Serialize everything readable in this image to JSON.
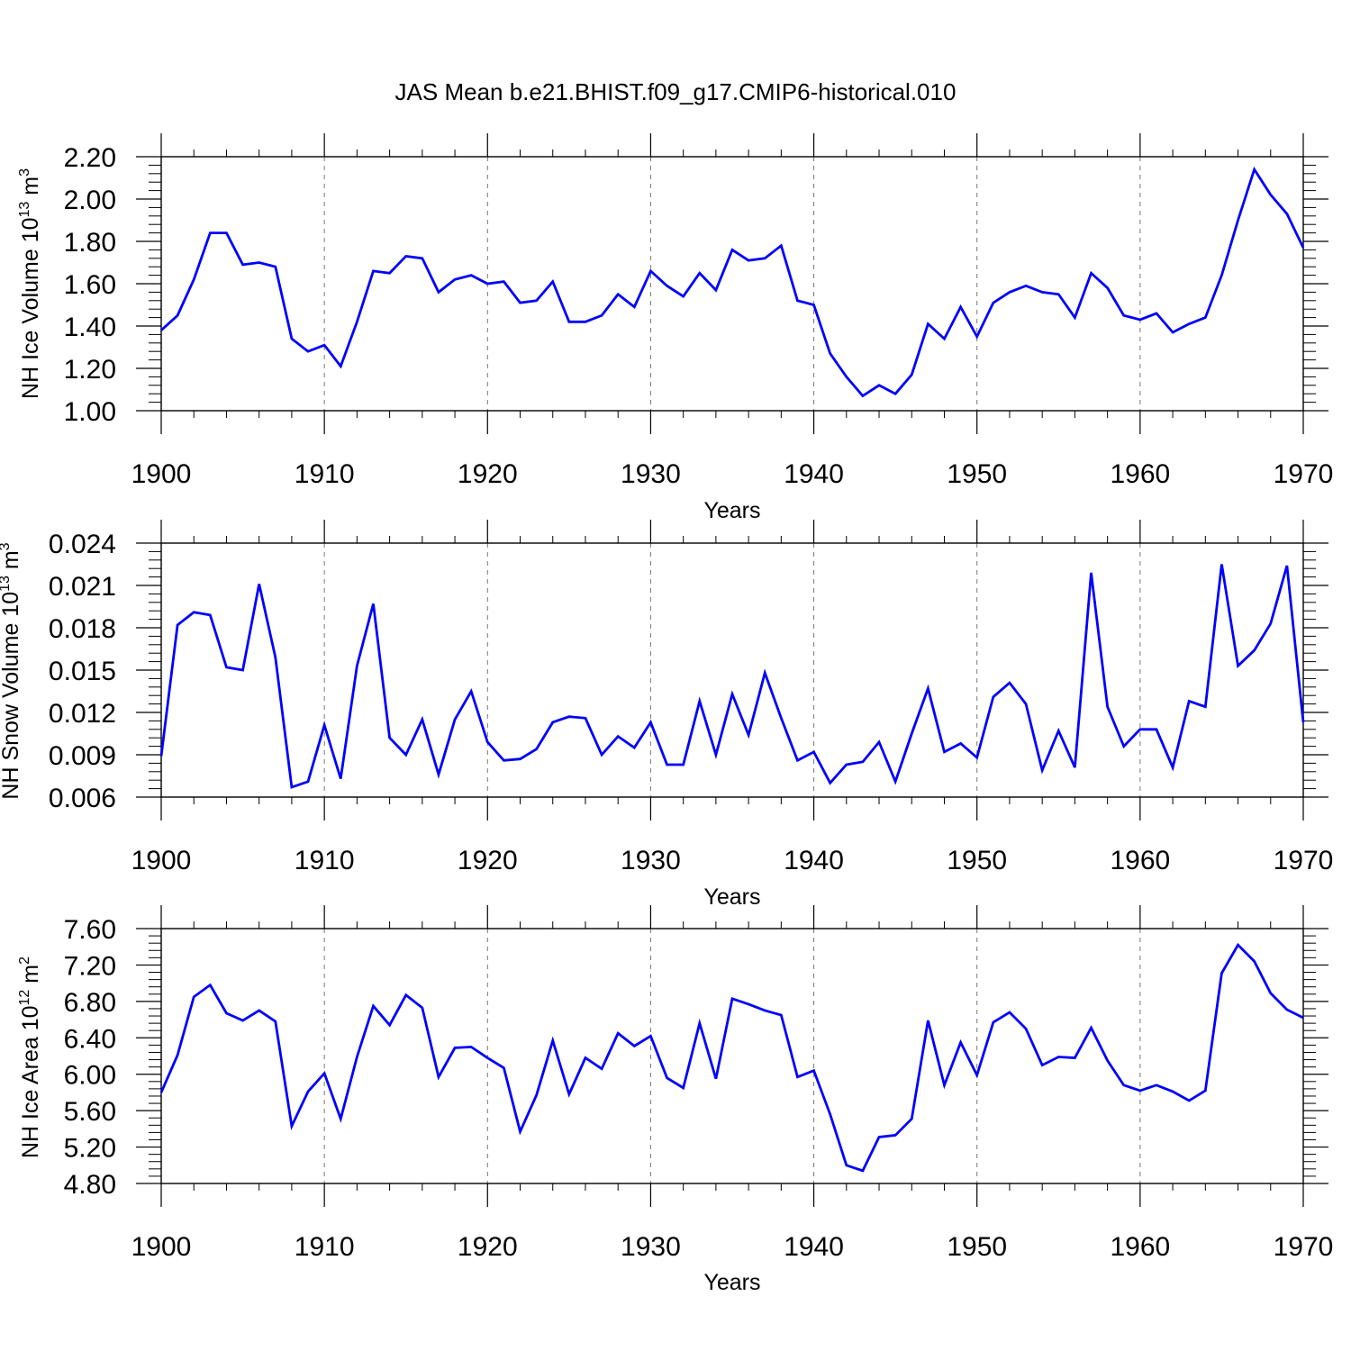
{
  "title": "JAS Mean b.e21.BHIST.f09_g17.CMIP6-historical.010",
  "colors": {
    "line": "#0000ff",
    "axis": "#000000",
    "grid": "#777777"
  },
  "chart_data": [
    {
      "type": "line",
      "xlabel": "Years",
      "ylabel": {
        "main": "NH Ice Volume 10",
        "sup1": "13",
        "mid": " m",
        "sup2": "3"
      },
      "xlim": [
        1900,
        1970
      ],
      "ylim": [
        1.0,
        2.2
      ],
      "yticks": [
        "1.00",
        "1.20",
        "1.40",
        "1.60",
        "1.80",
        "2.00",
        "2.20"
      ],
      "xticks": [
        "1900",
        "1910",
        "1920",
        "1930",
        "1940",
        "1950",
        "1960",
        "1970"
      ],
      "grid": "vertical dashed at decades",
      "x": [
        1900,
        1901,
        1902,
        1903,
        1904,
        1905,
        1906,
        1907,
        1908,
        1909,
        1910,
        1911,
        1912,
        1913,
        1914,
        1915,
        1916,
        1917,
        1918,
        1919,
        1920,
        1921,
        1922,
        1923,
        1924,
        1925,
        1926,
        1927,
        1928,
        1929,
        1930,
        1931,
        1932,
        1933,
        1934,
        1935,
        1936,
        1937,
        1938,
        1939,
        1940,
        1941,
        1942,
        1943,
        1944,
        1945,
        1946,
        1947,
        1948,
        1949,
        1950,
        1951,
        1952,
        1953,
        1954,
        1955,
        1956,
        1957,
        1958,
        1959,
        1960,
        1961,
        1962,
        1963,
        1964,
        1965,
        1966,
        1967,
        1968,
        1969,
        1970
      ],
      "values": [
        1.38,
        1.45,
        1.62,
        1.84,
        1.84,
        1.69,
        1.7,
        1.68,
        1.34,
        1.28,
        1.31,
        1.21,
        1.42,
        1.66,
        1.65,
        1.73,
        1.72,
        1.56,
        1.62,
        1.64,
        1.6,
        1.61,
        1.51,
        1.52,
        1.61,
        1.42,
        1.42,
        1.45,
        1.55,
        1.49,
        1.66,
        1.59,
        1.54,
        1.65,
        1.57,
        1.76,
        1.71,
        1.72,
        1.78,
        1.52,
        1.5,
        1.27,
        1.16,
        1.07,
        1.12,
        1.08,
        1.17,
        1.41,
        1.34,
        1.49,
        1.35,
        1.51,
        1.56,
        1.59,
        1.56,
        1.55,
        1.44,
        1.65,
        1.58,
        1.45,
        1.43,
        1.46,
        1.37,
        1.41,
        1.44,
        1.64,
        1.9,
        2.14,
        2.02,
        1.93,
        1.77
      ]
    },
    {
      "type": "line",
      "xlabel": "Years",
      "ylabel": {
        "main": "NH Snow Volume 10",
        "sup1": "13",
        "mid": " m",
        "sup2": "3"
      },
      "xlim": [
        1900,
        1970
      ],
      "ylim": [
        0.006,
        0.024
      ],
      "yticks": [
        "0.006",
        "0.009",
        "0.012",
        "0.015",
        "0.018",
        "0.021",
        "0.024"
      ],
      "xticks": [
        "1900",
        "1910",
        "1920",
        "1930",
        "1940",
        "1950",
        "1960",
        "1970"
      ],
      "grid": "vertical dashed at decades",
      "x": [
        1900,
        1901,
        1902,
        1903,
        1904,
        1905,
        1906,
        1907,
        1908,
        1909,
        1910,
        1911,
        1912,
        1913,
        1914,
        1915,
        1916,
        1917,
        1918,
        1919,
        1920,
        1921,
        1922,
        1923,
        1924,
        1925,
        1926,
        1927,
        1928,
        1929,
        1930,
        1931,
        1932,
        1933,
        1934,
        1935,
        1936,
        1937,
        1938,
        1939,
        1940,
        1941,
        1942,
        1943,
        1944,
        1945,
        1946,
        1947,
        1948,
        1949,
        1950,
        1951,
        1952,
        1953,
        1954,
        1955,
        1956,
        1957,
        1958,
        1959,
        1960,
        1961,
        1962,
        1963,
        1964,
        1965,
        1966,
        1967,
        1968,
        1969,
        1970
      ],
      "values": [
        0.0089,
        0.0182,
        0.0191,
        0.0189,
        0.0152,
        0.015,
        0.0211,
        0.0159,
        0.0067,
        0.0071,
        0.0111,
        0.0073,
        0.0153,
        0.0197,
        0.0102,
        0.009,
        0.0115,
        0.0076,
        0.0115,
        0.0135,
        0.0099,
        0.0086,
        0.0087,
        0.0094,
        0.0113,
        0.0117,
        0.0116,
        0.009,
        0.0103,
        0.0095,
        0.0113,
        0.0083,
        0.0083,
        0.0128,
        0.009,
        0.0133,
        0.0104,
        0.0148,
        0.0116,
        0.0086,
        0.0092,
        0.007,
        0.0083,
        0.0085,
        0.0099,
        0.0071,
        0.0105,
        0.0137,
        0.0092,
        0.0098,
        0.0088,
        0.0131,
        0.0141,
        0.0126,
        0.0079,
        0.0107,
        0.0081,
        0.0219,
        0.0124,
        0.0096,
        0.0108,
        0.0108,
        0.0081,
        0.0128,
        0.0124,
        0.0225,
        0.0153,
        0.0164,
        0.0183,
        0.0224,
        0.0113
      ]
    },
    {
      "type": "line",
      "xlabel": "Years",
      "ylabel": {
        "main": "NH Ice Area 10",
        "sup1": "12",
        "mid": " m",
        "sup2": "2"
      },
      "xlim": [
        1900,
        1970
      ],
      "ylim": [
        4.8,
        7.6
      ],
      "yticks": [
        "4.80",
        "5.20",
        "5.60",
        "6.00",
        "6.40",
        "6.80",
        "7.20",
        "7.60"
      ],
      "xticks": [
        "1900",
        "1910",
        "1920",
        "1930",
        "1940",
        "1950",
        "1960",
        "1970"
      ],
      "grid": "vertical dashed at decades",
      "x": [
        1900,
        1901,
        1902,
        1903,
        1904,
        1905,
        1906,
        1907,
        1908,
        1909,
        1910,
        1911,
        1912,
        1913,
        1914,
        1915,
        1916,
        1917,
        1918,
        1919,
        1920,
        1921,
        1922,
        1923,
        1924,
        1925,
        1926,
        1927,
        1928,
        1929,
        1930,
        1931,
        1932,
        1933,
        1934,
        1935,
        1936,
        1937,
        1938,
        1939,
        1940,
        1941,
        1942,
        1943,
        1944,
        1945,
        1946,
        1947,
        1948,
        1949,
        1950,
        1951,
        1952,
        1953,
        1954,
        1955,
        1956,
        1957,
        1958,
        1959,
        1960,
        1961,
        1962,
        1963,
        1964,
        1965,
        1966,
        1967,
        1968,
        1969,
        1970
      ],
      "values": [
        5.8,
        6.21,
        6.85,
        6.98,
        6.67,
        6.59,
        6.7,
        6.58,
        5.43,
        5.81,
        6.01,
        5.51,
        6.19,
        6.75,
        6.54,
        6.87,
        6.73,
        5.97,
        6.29,
        6.3,
        6.18,
        6.07,
        5.37,
        5.77,
        6.37,
        5.78,
        6.18,
        6.06,
        6.45,
        6.31,
        6.42,
        5.96,
        5.85,
        6.56,
        5.95,
        6.83,
        6.77,
        6.7,
        6.65,
        5.97,
        6.04,
        5.56,
        5.0,
        4.94,
        5.31,
        5.33,
        5.51,
        6.59,
        5.88,
        6.35,
        5.99,
        6.57,
        6.68,
        6.5,
        6.1,
        6.19,
        6.18,
        6.51,
        6.15,
        5.88,
        5.82,
        5.88,
        5.81,
        5.71,
        5.82,
        7.11,
        7.42,
        7.24,
        6.89,
        6.71,
        6.62
      ]
    }
  ]
}
